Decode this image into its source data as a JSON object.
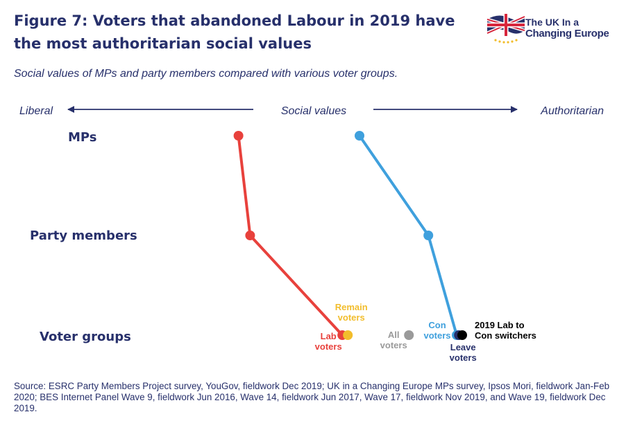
{
  "logo": {
    "line1": "The UK In a",
    "line2": "Changing Europe"
  },
  "chart_data": {
    "type": "scatter",
    "title": "Figure 7: Voters that abandoned Labour in 2019 have the most authoritarian social values",
    "subtitle": "Social values of MPs and party members compared with various voter groups.",
    "axis": {
      "left_label": "Liberal",
      "center_label": "Social values",
      "right_label": "Authoritarian",
      "range": [
        0,
        100
      ]
    },
    "rows": [
      {
        "key": "mps",
        "label": "MPs"
      },
      {
        "key": "members",
        "label": "Party members"
      },
      {
        "key": "voters",
        "label": "Voter groups"
      }
    ],
    "series": [
      {
        "name": "Labour",
        "color": "#e8413c",
        "points": [
          {
            "row": "mps",
            "value": 36.7
          },
          {
            "row": "members",
            "value": 38.8
          },
          {
            "row": "voters",
            "value": 55.4
          }
        ]
      },
      {
        "name": "Conservative",
        "color": "#3fa0dd",
        "points": [
          {
            "row": "mps",
            "value": 58.5
          },
          {
            "row": "members",
            "value": 70.9
          },
          {
            "row": "voters",
            "value": 76.0
          }
        ]
      }
    ],
    "voter_groups": [
      {
        "label": [
          "Lab",
          "voters"
        ],
        "value": 55.4,
        "color": "#e8413c",
        "placement": "below-left"
      },
      {
        "label": [
          "Remain",
          "voters"
        ],
        "value": 56.4,
        "color": "#f2bd2c",
        "placement": "above"
      },
      {
        "label": [
          "All",
          "voters"
        ],
        "value": 67.4,
        "color": "#9a9a9a",
        "placement": "left"
      },
      {
        "label": [
          "Con",
          "voters"
        ],
        "value": 76.0,
        "color": "#3fa0dd",
        "placement": "above-left"
      },
      {
        "label": [
          "Leave",
          "voters"
        ],
        "value": 76.4,
        "color": "#27306b",
        "placement": "below"
      },
      {
        "label": [
          "2019 Lab to",
          "Con switchers"
        ],
        "value": 77.0,
        "color": "#000000",
        "placement": "right"
      }
    ]
  },
  "source": "Source: ESRC Party Members Project survey, YouGov, fieldwork Dec 2019; UK in a Changing Europe MPs survey, Ipsos Mori, fieldwork Jan-Feb 2020; BES Internet Panel Wave 9, fieldwork Jun 2016, Wave 14, fieldwork Jun 2017, Wave 17, fieldwork Nov 2019, and Wave 19, fieldwork Dec 2019."
}
